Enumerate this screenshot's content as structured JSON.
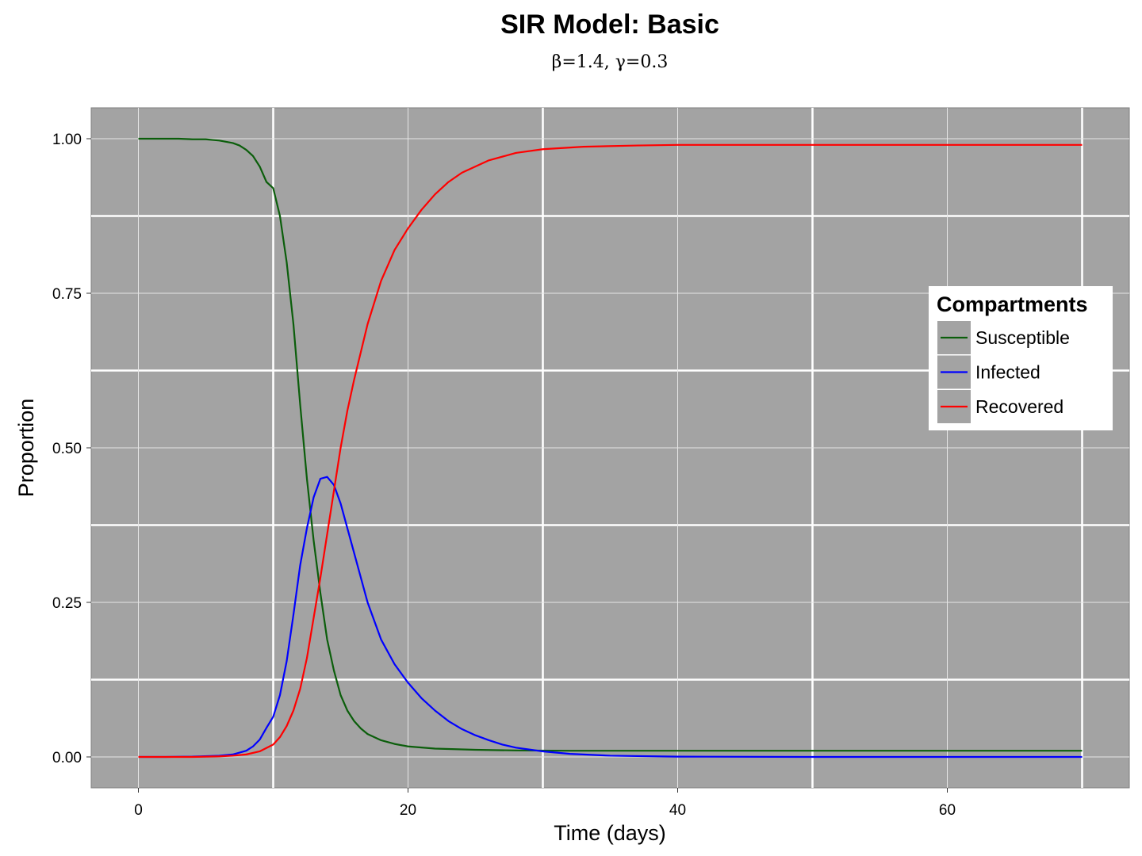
{
  "chart_data": {
    "type": "line",
    "title": "SIR Model: Basic",
    "subtitle": "β=1.4,  γ=0.3",
    "xlabel": "Time (days)",
    "ylabel": "Proportion",
    "xlim": [
      -3.5,
      73.5
    ],
    "ylim": [
      -0.05,
      1.05
    ],
    "x_ticks": [
      0,
      20,
      40,
      60
    ],
    "x_tick_labels": [
      "0",
      "20",
      "40",
      "60"
    ],
    "y_ticks": [
      0,
      0.25,
      0.5,
      0.75,
      1.0
    ],
    "y_tick_labels": [
      "0.00",
      "0.25",
      "0.50",
      "0.75",
      "1.00"
    ],
    "grid": true,
    "panel_background": "#A3A3A3",
    "legend": {
      "title": "Compartments",
      "placement": "right"
    },
    "series": [
      {
        "name": "Susceptible",
        "color": "#0B5E0B",
        "points": [
          [
            0,
            1.0
          ],
          [
            1,
            1.0
          ],
          [
            2,
            1.0
          ],
          [
            3,
            1.0
          ],
          [
            4,
            0.999
          ],
          [
            5,
            0.999
          ],
          [
            6,
            0.997
          ],
          [
            7,
            0.993
          ],
          [
            7.5,
            0.989
          ],
          [
            8,
            0.982
          ],
          [
            8.5,
            0.972
          ],
          [
            9,
            0.955
          ],
          [
            9.5,
            0.93
          ],
          [
            10,
            0.92
          ],
          [
            10.5,
            0.875
          ],
          [
            11,
            0.8
          ],
          [
            11.5,
            0.7
          ],
          [
            12,
            0.57
          ],
          [
            12.5,
            0.45
          ],
          [
            13,
            0.35
          ],
          [
            13.5,
            0.265
          ],
          [
            14,
            0.19
          ],
          [
            14.5,
            0.14
          ],
          [
            15,
            0.1
          ],
          [
            15.5,
            0.075
          ],
          [
            16,
            0.058
          ],
          [
            16.5,
            0.046
          ],
          [
            17,
            0.037
          ],
          [
            18,
            0.027
          ],
          [
            19,
            0.021
          ],
          [
            20,
            0.017
          ],
          [
            22,
            0.0135
          ],
          [
            25,
            0.0115
          ],
          [
            28,
            0.0105
          ],
          [
            32,
            0.01
          ],
          [
            40,
            0.01
          ],
          [
            50,
            0.01
          ],
          [
            60,
            0.01
          ],
          [
            70,
            0.01
          ]
        ]
      },
      {
        "name": "Infected",
        "color": "#0000FF",
        "points": [
          [
            0,
            0.0
          ],
          [
            2,
            0.0
          ],
          [
            4,
            0.0005
          ],
          [
            6,
            0.002
          ],
          [
            7,
            0.004
          ],
          [
            8,
            0.01
          ],
          [
            8.5,
            0.017
          ],
          [
            9,
            0.028
          ],
          [
            9.5,
            0.047
          ],
          [
            10,
            0.065
          ],
          [
            10.5,
            0.1
          ],
          [
            11,
            0.155
          ],
          [
            11.5,
            0.23
          ],
          [
            12,
            0.31
          ],
          [
            12.5,
            0.37
          ],
          [
            13,
            0.42
          ],
          [
            13.5,
            0.45
          ],
          [
            14,
            0.453
          ],
          [
            14.5,
            0.44
          ],
          [
            15,
            0.41
          ],
          [
            15.5,
            0.37
          ],
          [
            16,
            0.33
          ],
          [
            17,
            0.25
          ],
          [
            18,
            0.19
          ],
          [
            19,
            0.15
          ],
          [
            20,
            0.12
          ],
          [
            21,
            0.095
          ],
          [
            22,
            0.075
          ],
          [
            23,
            0.058
          ],
          [
            24,
            0.045
          ],
          [
            25,
            0.035
          ],
          [
            26,
            0.027
          ],
          [
            27,
            0.02
          ],
          [
            28,
            0.015
          ],
          [
            30,
            0.009
          ],
          [
            32,
            0.005
          ],
          [
            35,
            0.002
          ],
          [
            40,
            0.0005
          ],
          [
            50,
            0.0
          ],
          [
            60,
            0.0
          ],
          [
            70,
            0.0
          ]
        ]
      },
      {
        "name": "Recovered",
        "color": "#FF0000",
        "points": [
          [
            0,
            0.0
          ],
          [
            2,
            0.0
          ],
          [
            4,
            0.0
          ],
          [
            6,
            0.001
          ],
          [
            7,
            0.002
          ],
          [
            8,
            0.004
          ],
          [
            9,
            0.009
          ],
          [
            10,
            0.02
          ],
          [
            10.5,
            0.032
          ],
          [
            11,
            0.05
          ],
          [
            11.5,
            0.075
          ],
          [
            12,
            0.11
          ],
          [
            12.5,
            0.16
          ],
          [
            13,
            0.225
          ],
          [
            13.5,
            0.29
          ],
          [
            14,
            0.36
          ],
          [
            14.5,
            0.43
          ],
          [
            15,
            0.5
          ],
          [
            15.5,
            0.56
          ],
          [
            16,
            0.61
          ],
          [
            17,
            0.7
          ],
          [
            18,
            0.77
          ],
          [
            19,
            0.82
          ],
          [
            20,
            0.855
          ],
          [
            21,
            0.885
          ],
          [
            22,
            0.91
          ],
          [
            23,
            0.93
          ],
          [
            24,
            0.945
          ],
          [
            26,
            0.965
          ],
          [
            28,
            0.977
          ],
          [
            30,
            0.983
          ],
          [
            33,
            0.987
          ],
          [
            37,
            0.989
          ],
          [
            40,
            0.99
          ],
          [
            50,
            0.99
          ],
          [
            60,
            0.99
          ],
          [
            70,
            0.99
          ]
        ]
      }
    ]
  }
}
